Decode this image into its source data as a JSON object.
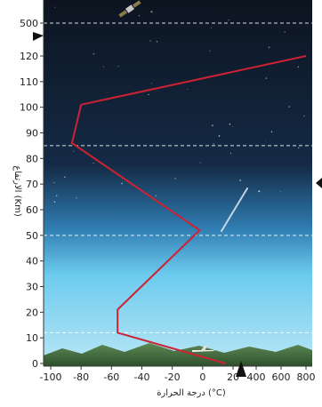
{
  "chart_data": {
    "type": "line",
    "xlabel": "درجة الحرارة (°C)",
    "ylabel": "الارتفاع (Km)",
    "x_ticks": [
      "-100",
      "-80",
      "-60",
      "-40",
      "-20",
      "0",
      "20",
      "400",
      "600",
      "800"
    ],
    "y_ticks": [
      "0",
      "10",
      "20",
      "30",
      "40",
      "50",
      "60",
      "70",
      "80",
      "90",
      "100",
      "110",
      "120",
      "500"
    ],
    "xlim": [
      -100,
      800
    ],
    "ylim": [
      0,
      500
    ],
    "axis_breaks": {
      "x_after": 20,
      "y_after": 120
    },
    "layer_boundaries_km": [
      12,
      50,
      85,
      500
    ],
    "series": [
      {
        "x": [
          15,
          -56,
          -56,
          -2,
          -86,
          -80,
          800
        ],
        "y": [
          0,
          12,
          21,
          52,
          86,
          101,
          120
        ],
        "color": "#cc2233"
      }
    ],
    "colors": {
      "sky_top": "#0d1420",
      "sky_mid": "#142a45",
      "sky_low": "#6ccbee",
      "ground": "#3f6b3c",
      "curve": "#cc2233",
      "boundary": "#ffffff"
    },
    "illustrations": [
      "satellite-icon",
      "meteor-icon",
      "aircraft-icon",
      "mountains-icon"
    ]
  }
}
